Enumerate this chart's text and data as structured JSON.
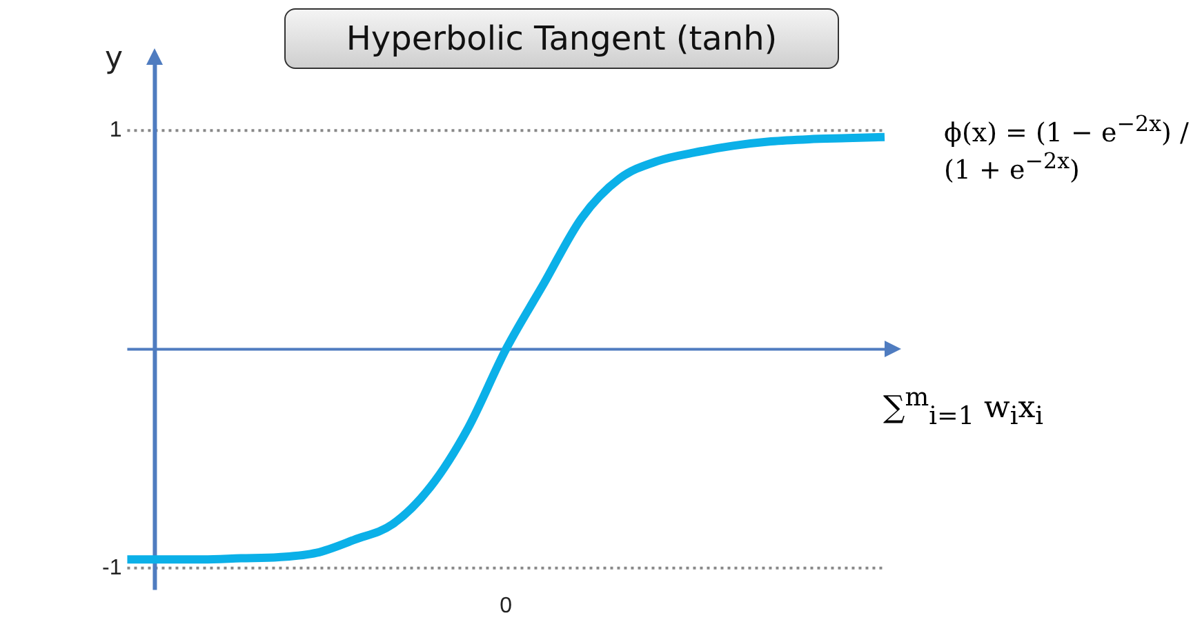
{
  "chart_data": {
    "type": "line",
    "title": "Hyperbolic Tangent (tanh)",
    "ylabel": "y",
    "xlabel": "∑$^{m}$$_{i=1}$ w$_{i}$x$_{i}$",
    "annotations": [
      "ϕ(x) = (1 − e$^{−2x}$) / (1 + e$^{−2x}$)"
    ],
    "categories": [
      null,
      null,
      null,
      null,
      null,
      null,
      null,
      null,
      null,
      null,
      "0",
      null,
      null,
      null,
      null,
      null,
      null,
      null,
      null,
      null,
      null
    ],
    "series": [
      {
        "color": "#0bb0e8",
        "values": [
          -0.96,
          -0.96,
          -0.96,
          -0.955,
          -0.95,
          -0.93,
          -0.87,
          -0.8,
          -0.63,
          -0.36,
          0,
          0.3,
          0.6,
          0.78,
          0.86,
          0.9,
          0.93,
          0.95,
          0.96,
          0.965,
          0.97
        ]
      }
    ],
    "ylim": [
      -1.1,
      1.3
    ],
    "yticks": [
      -1,
      1
    ],
    "ref_lines": [
      {
        "axis": "y",
        "value": 0,
        "label": null,
        "color": "#4f7cc0",
        "line_style": "solid"
      },
      {
        "axis": "y",
        "value": 1,
        "label": null,
        "color": "#888888",
        "line_style": "dotted"
      },
      {
        "axis": "y",
        "value": -1,
        "label": null,
        "color": "#888888",
        "line_style": "dotted"
      }
    ],
    "grid": false,
    "legend": false,
    "marker": "none",
    "line_style": "solid"
  }
}
